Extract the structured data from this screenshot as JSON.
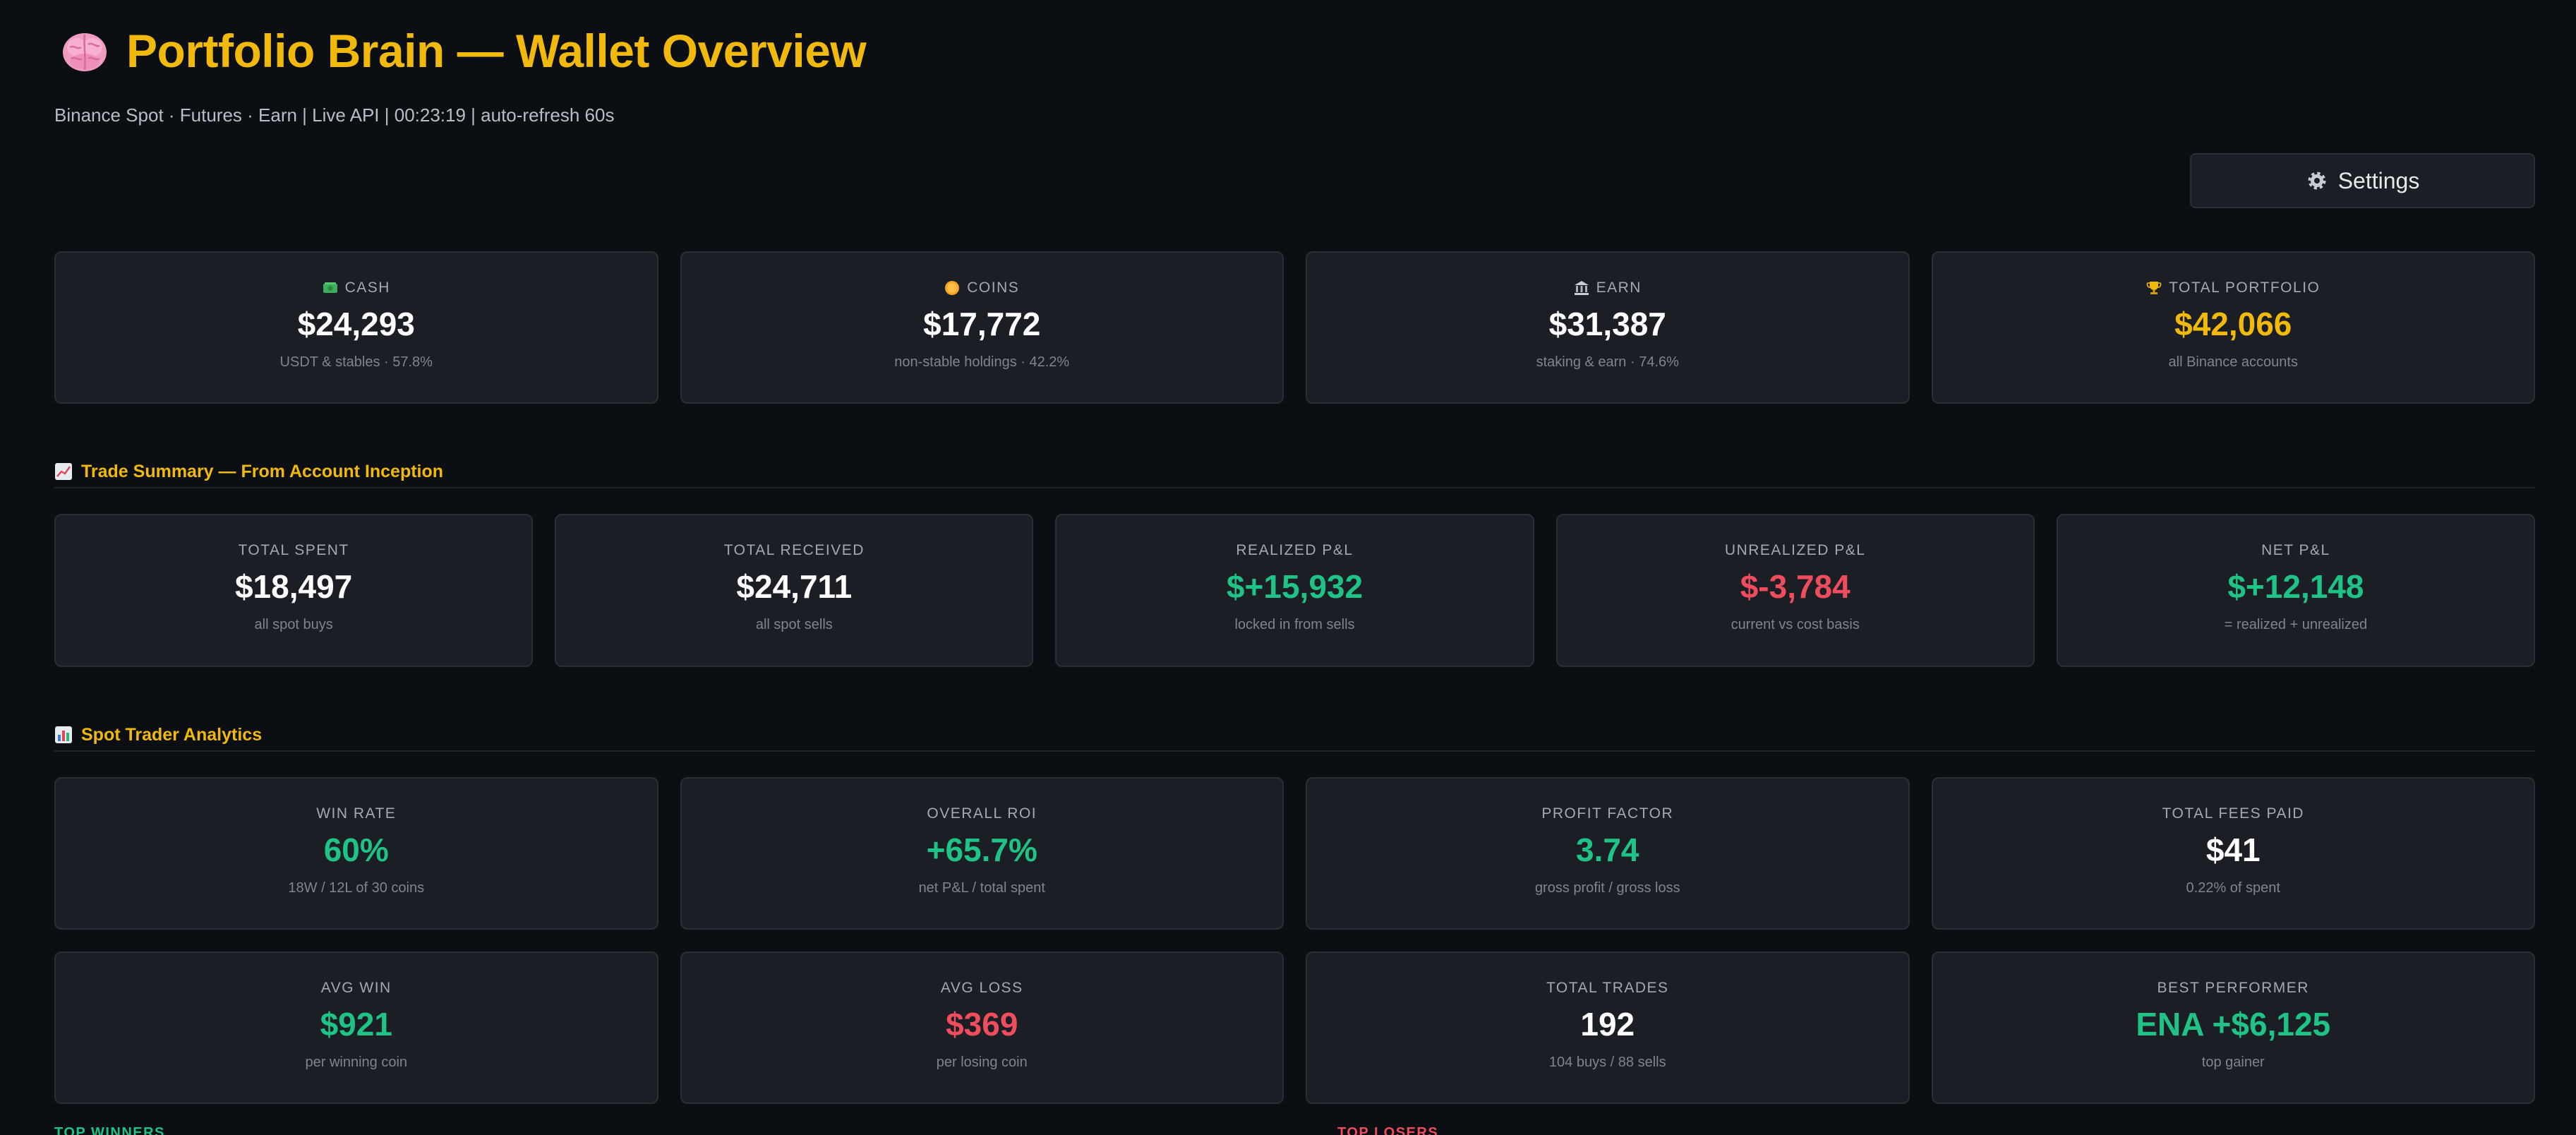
{
  "header": {
    "title": "Portfolio Brain — Wallet Overview",
    "brain_icon": "brain-icon",
    "subtitle": "Binance Spot · Futures · Earn | Live API | 00:23:19 | auto-refresh 60s"
  },
  "settings": {
    "label": "Settings",
    "icon": "gear-icon"
  },
  "balances": [
    {
      "icon": "cash-icon",
      "label": "CASH",
      "value": "$24,293",
      "note": "USDT & stables · 57.8%",
      "color": "#ffffff"
    },
    {
      "icon": "coin-icon",
      "label": "COINS",
      "value": "$17,772",
      "note": "non-stable holdings · 42.2%",
      "color": "#ffffff"
    },
    {
      "icon": "bank-icon",
      "label": "EARN",
      "value": "$31,387",
      "note": "staking & earn · 74.6%",
      "color": "#ffffff"
    },
    {
      "icon": "trophy-icon",
      "label": "TOTAL PORTFOLIO",
      "value": "$42,066",
      "note": "all Binance accounts",
      "color": "#f0b90b"
    }
  ],
  "trade_summary": {
    "icon": "chart-up-icon",
    "title": "Trade Summary — From Account Inception",
    "cards": [
      {
        "label": "TOTAL SPENT",
        "value": "$18,497",
        "note": "all spot buys",
        "color": "#ffffff"
      },
      {
        "label": "TOTAL RECEIVED",
        "value": "$24,711",
        "note": "all spot sells",
        "color": "#ffffff"
      },
      {
        "label": "REALIZED P&L",
        "value": "$+15,932",
        "note": "locked in from sells",
        "color": "#1fc386"
      },
      {
        "label": "UNREALIZED P&L",
        "value": "$-3,784",
        "note": "current vs cost basis",
        "color": "#ef4d5d"
      },
      {
        "label": "NET P&L",
        "value": "$+12,148",
        "note": "= realized + unrealized",
        "color": "#1fc386"
      }
    ]
  },
  "analytics": {
    "icon": "bar-chart-icon",
    "title": "Spot Trader Analytics",
    "row1": [
      {
        "label": "WIN RATE",
        "value": "60%",
        "note": "18W / 12L of 30 coins",
        "color": "#1fc386"
      },
      {
        "label": "OVERALL ROI",
        "value": "+65.7%",
        "note": "net P&L / total spent",
        "color": "#1fc386"
      },
      {
        "label": "PROFIT FACTOR",
        "value": "3.74",
        "note": "gross profit / gross loss",
        "color": "#1fc386"
      },
      {
        "label": "TOTAL FEES PAID",
        "value": "$41",
        "note": "0.22% of spent",
        "color": "#ffffff"
      }
    ],
    "row2": [
      {
        "label": "AVG WIN",
        "value": "$921",
        "note": "per winning coin",
        "color": "#1fc386"
      },
      {
        "label": "AVG LOSS",
        "value": "$369",
        "note": "per losing coin",
        "color": "#ef4d5d"
      },
      {
        "label": "TOTAL TRADES",
        "value": "192",
        "note": "104 buys / 88 sells",
        "color": "#ffffff"
      },
      {
        "label": "BEST PERFORMER",
        "value": "ENA +$6,125",
        "note": "top gainer",
        "color": "#1fc386"
      }
    ]
  },
  "bottom": {
    "left_label": "TOP WINNERS",
    "right_label": "TOP LOSERS"
  }
}
